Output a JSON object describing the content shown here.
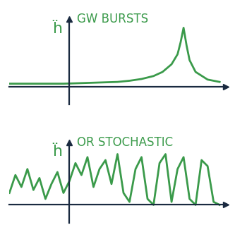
{
  "chart_data": [
    {
      "type": "line",
      "title": "GW BURSTS",
      "ylabel": "ḧ",
      "x": [
        -1.0,
        -0.7,
        -0.4,
        -0.1,
        0.2,
        0.5,
        0.8,
        1.0,
        1.2,
        1.4,
        1.55,
        1.7,
        1.8,
        1.85,
        1.9,
        1.95,
        2.0,
        2.1,
        2.3,
        2.5
      ],
      "values": [
        0.05,
        0.05,
        0.05,
        0.05,
        0.06,
        0.07,
        0.08,
        0.1,
        0.13,
        0.18,
        0.25,
        0.38,
        0.55,
        0.75,
        1.0,
        0.7,
        0.45,
        0.25,
        0.12,
        0.08
      ],
      "color": "#3a9a4a",
      "xlim": [
        -1.0,
        2.6
      ],
      "ylim": [
        -0.3,
        1.15
      ],
      "xticks": [],
      "yticks": [],
      "tick_labels": false
    },
    {
      "type": "line",
      "title": "OR STOCHASTIC",
      "ylabel": "ḧ",
      "x": [
        -1.0,
        -0.9,
        -0.8,
        -0.7,
        -0.6,
        -0.5,
        -0.4,
        -0.3,
        -0.2,
        -0.1,
        0.0,
        0.1,
        0.2,
        0.3,
        0.4,
        0.5,
        0.6,
        0.7,
        0.8,
        0.9,
        1.0,
        1.1,
        1.2,
        1.3,
        1.4,
        1.5,
        1.6,
        1.7,
        1.8,
        1.9,
        2.0,
        2.1,
        2.2,
        2.3,
        2.4,
        2.5
      ],
      "values": [
        0.2,
        0.5,
        0.3,
        0.6,
        0.25,
        0.45,
        0.1,
        0.35,
        0.55,
        0.2,
        0.4,
        0.7,
        0.5,
        0.8,
        0.3,
        0.6,
        0.75,
        0.35,
        0.85,
        0.2,
        0.05,
        0.6,
        0.8,
        0.1,
        0.0,
        0.7,
        0.85,
        0.05,
        0.6,
        0.8,
        0.1,
        0.0,
        0.75,
        0.65,
        0.05,
        0.0
      ],
      "color": "#3a9a4a",
      "xlim": [
        -1.0,
        2.6
      ],
      "ylim": [
        -0.3,
        1.05
      ],
      "xticks": [],
      "yticks": [],
      "tick_labels": false
    }
  ]
}
